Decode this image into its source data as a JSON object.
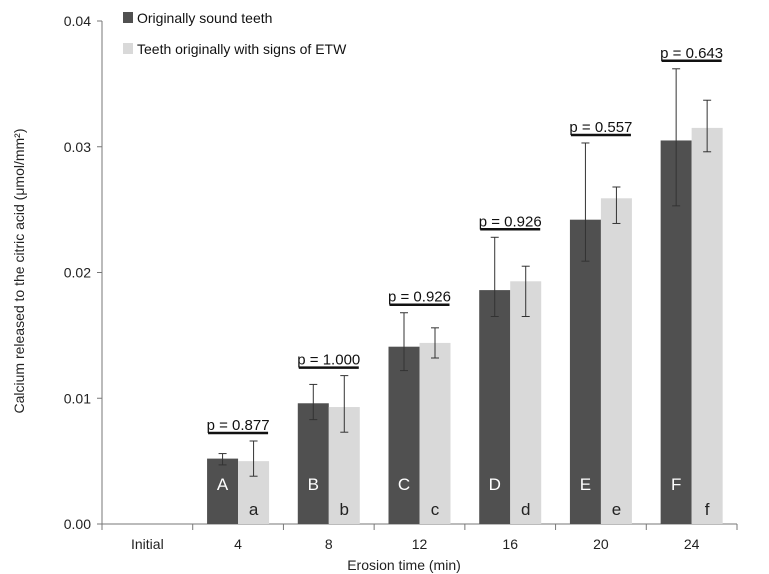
{
  "chart_data": {
    "type": "bar",
    "xlabel": "Erosion time (min)",
    "ylabel": "Calcium released to the citric acid (μmol/mm²)",
    "ylim": [
      0,
      0.04
    ],
    "yticks": [
      "0.00",
      "0.01",
      "0.02",
      "0.03",
      "0.04"
    ],
    "categories": [
      "Initial",
      "4",
      "8",
      "12",
      "16",
      "20",
      "24"
    ],
    "series": [
      {
        "name": "Originally sound teeth",
        "color": "#505050",
        "values": [
          null,
          0.0052,
          0.0096,
          0.0141,
          0.0186,
          0.0242,
          0.0305
        ],
        "err_high": [
          null,
          0.0056,
          0.0111,
          0.0168,
          0.0228,
          0.0303,
          0.0362
        ],
        "err_low": [
          null,
          0.0047,
          0.0083,
          0.0122,
          0.0165,
          0.0209,
          0.0253
        ],
        "group_letters": [
          "",
          "A",
          "B",
          "C",
          "D",
          "E",
          "F"
        ]
      },
      {
        "name": "Teeth originally with signs of ETW",
        "color": "#d9d9d9",
        "values": [
          null,
          0.005,
          0.0093,
          0.0144,
          0.0193,
          0.0259,
          0.0315
        ],
        "err_high": [
          null,
          0.0066,
          0.0118,
          0.0156,
          0.0205,
          0.0268,
          0.0337
        ],
        "err_low": [
          null,
          0.0038,
          0.0073,
          0.0132,
          0.0165,
          0.0239,
          0.0296
        ],
        "group_letters": [
          "",
          "a",
          "b",
          "c",
          "d",
          "e",
          "f"
        ]
      }
    ],
    "p_values": [
      "",
      "p = 0.877",
      "p = 1.000",
      "p = 0.926",
      "p = 0.926",
      "p = 0.557",
      "p = 0.643"
    ],
    "legend_position": "top-left",
    "grid": false
  }
}
